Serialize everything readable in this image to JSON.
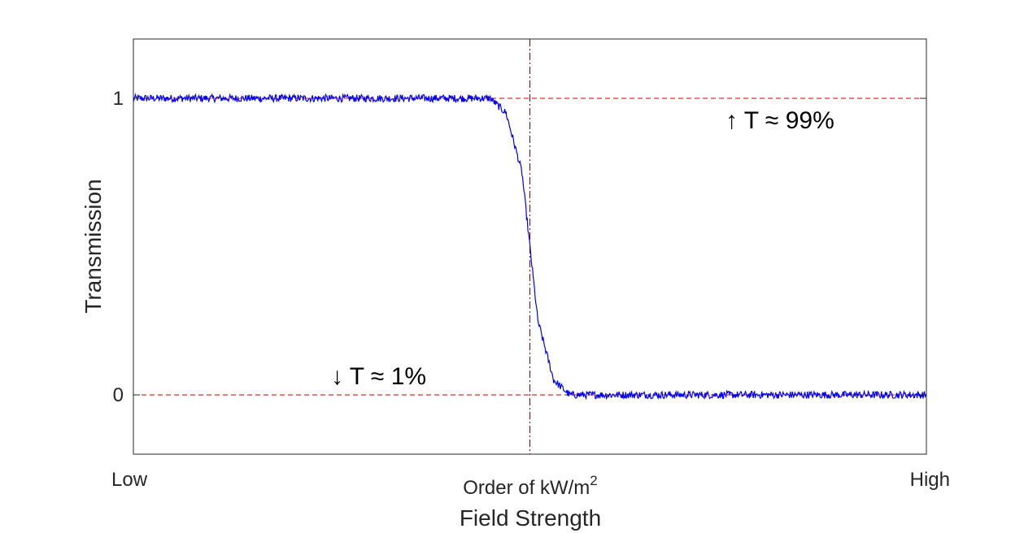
{
  "chart_data": {
    "type": "line",
    "title": "",
    "xlabel": "Field Strength",
    "ylabel": "Transmission",
    "x_tick_labels": {
      "left": "Low",
      "center": "Order of kW/m",
      "center_superscript": "2",
      "right": "High"
    },
    "y_ticks": [
      0,
      1
    ],
    "y_tick_labels": [
      "0",
      "1"
    ],
    "xlim": [
      0,
      1
    ],
    "ylim": [
      -0.2,
      1.2
    ],
    "grid": false,
    "legend": "none",
    "series": [
      {
        "color": "#0000ff",
        "description_points": [
          [
            0,
            1.0
          ],
          [
            0.45,
            1.0
          ],
          [
            0.47,
            0.95
          ],
          [
            0.49,
            0.75
          ],
          [
            0.5,
            0.5
          ],
          [
            0.51,
            0.25
          ],
          [
            0.53,
            0.05
          ],
          [
            0.55,
            0.0
          ],
          [
            1.0,
            0.0
          ]
        ]
      }
    ],
    "reference_lines": [
      {
        "orientation": "horizontal",
        "value": 1.0,
        "color": "#cc0000",
        "style": "dashed"
      },
      {
        "orientation": "horizontal",
        "value": 0.0,
        "color": "#cc0000",
        "style": "dashed"
      },
      {
        "orientation": "vertical",
        "value": 0.5,
        "color": "#8b0000",
        "style": "dash-dot"
      }
    ],
    "annotations": [
      {
        "text": "↑ T ≈ 99%"
      },
      {
        "text": "↓ T ≈ 1%"
      }
    ]
  }
}
